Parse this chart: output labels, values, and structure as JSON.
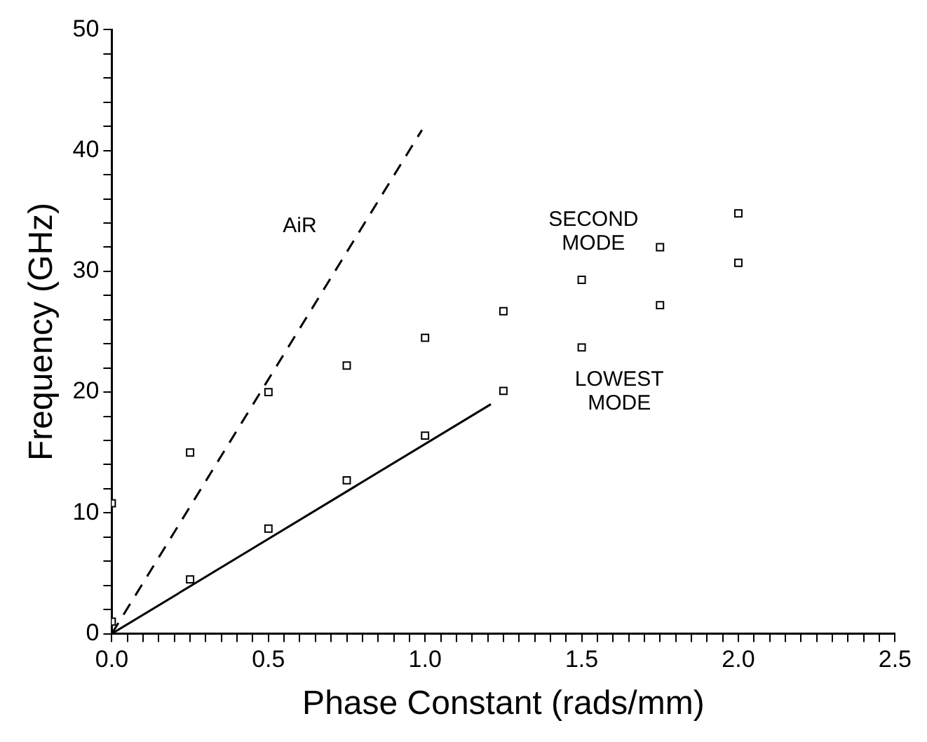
{
  "chart_data": {
    "type": "scatter",
    "xlabel": "Phase Constant (rads/mm)",
    "ylabel": "Frequency (GHz)",
    "xlim": [
      0,
      2.5
    ],
    "ylim": [
      0,
      50
    ],
    "xticks": [
      {
        "value": 0,
        "label": "0.0"
      },
      {
        "value": 0.05,
        "label": null
      },
      {
        "value": 0.1,
        "label": null
      },
      {
        "value": 0.15,
        "label": null
      },
      {
        "value": 0.2,
        "label": null
      },
      {
        "value": 0.25,
        "label": null
      },
      {
        "value": 0.3,
        "label": null
      },
      {
        "value": 0.35,
        "label": null
      },
      {
        "value": 0.4,
        "label": null
      },
      {
        "value": 0.45,
        "label": null
      },
      {
        "value": 0.5,
        "label": "0.5"
      },
      {
        "value": 0.55,
        "label": null
      },
      {
        "value": 0.6,
        "label": null
      },
      {
        "value": 0.65,
        "label": null
      },
      {
        "value": 0.7,
        "label": null
      },
      {
        "value": 0.75,
        "label": null
      },
      {
        "value": 0.8,
        "label": null
      },
      {
        "value": 0.85,
        "label": null
      },
      {
        "value": 0.9,
        "label": null
      },
      {
        "value": 0.95,
        "label": null
      },
      {
        "value": 1,
        "label": "1.0"
      },
      {
        "value": 1.05,
        "label": null
      },
      {
        "value": 1.1,
        "label": null
      },
      {
        "value": 1.15,
        "label": null
      },
      {
        "value": 1.2,
        "label": null
      },
      {
        "value": 1.25,
        "label": null
      },
      {
        "value": 1.3,
        "label": null
      },
      {
        "value": 1.35,
        "label": null
      },
      {
        "value": 1.4,
        "label": null
      },
      {
        "value": 1.45,
        "label": null
      },
      {
        "value": 1.5,
        "label": "1.5"
      },
      {
        "value": 1.55,
        "label": null
      },
      {
        "value": 1.6,
        "label": null
      },
      {
        "value": 1.65,
        "label": null
      },
      {
        "value": 1.7,
        "label": null
      },
      {
        "value": 1.75,
        "label": null
      },
      {
        "value": 1.8,
        "label": null
      },
      {
        "value": 1.85,
        "label": null
      },
      {
        "value": 1.9,
        "label": null
      },
      {
        "value": 1.95,
        "label": null
      },
      {
        "value": 2,
        "label": "2.0"
      },
      {
        "value": 2.05,
        "label": null
      },
      {
        "value": 2.1,
        "label": null
      },
      {
        "value": 2.15,
        "label": null
      },
      {
        "value": 2.2,
        "label": null
      },
      {
        "value": 2.25,
        "label": null
      },
      {
        "value": 2.3,
        "label": null
      },
      {
        "value": 2.35,
        "label": null
      },
      {
        "value": 2.4,
        "label": null
      },
      {
        "value": 2.45,
        "label": null
      },
      {
        "value": 2.5,
        "label": "2.5"
      }
    ],
    "yticks": [
      0,
      {
        "value": 2,
        "label": null
      },
      {
        "value": 4,
        "label": null
      },
      {
        "value": 6,
        "label": null
      },
      {
        "value": 8,
        "label": null
      },
      10,
      {
        "value": 12,
        "label": null
      },
      {
        "value": 14,
        "label": null
      },
      {
        "value": 16,
        "label": null
      },
      {
        "value": 18,
        "label": null
      },
      20,
      {
        "value": 22,
        "label": null
      },
      {
        "value": 24,
        "label": null
      },
      {
        "value": 26,
        "label": null
      },
      {
        "value": 28,
        "label": null
      },
      30,
      {
        "value": 32,
        "label": null
      },
      {
        "value": 34,
        "label": null
      },
      {
        "value": 36,
        "label": null
      },
      {
        "value": 38,
        "label": null
      },
      40,
      {
        "value": 42,
        "label": null
      },
      {
        "value": 44,
        "label": null
      },
      {
        "value": 46,
        "label": null
      },
      {
        "value": 48,
        "label": null
      },
      50
    ],
    "grid": false,
    "legend": false,
    "series": [
      {
        "type": "scatter",
        "marker": "square",
        "color": "#000000",
        "x": [
          0,
          0,
          0.25,
          0.25,
          0.5,
          0.5,
          0.75,
          0.75,
          1,
          1,
          1.25,
          1.25,
          1.5,
          1.5,
          1.75,
          1.75,
          2,
          2
        ],
        "values": [
          1.0,
          10.8,
          4.5,
          15.0,
          8.7,
          20.0,
          12.7,
          22.2,
          16.4,
          24.5,
          20.1,
          26.7,
          23.7,
          29.3,
          27.2,
          32.0,
          30.7,
          34.8
        ]
      },
      {
        "type": "line",
        "marker": "none",
        "line_style": "dashed",
        "color": "#000000",
        "x": [
          0,
          0.99
        ],
        "values": [
          0,
          41.7
        ]
      },
      {
        "type": "line",
        "marker": "none",
        "line_style": "solid",
        "color": "#000000",
        "x": [
          0,
          1.21
        ],
        "values": [
          0,
          19.0
        ]
      }
    ],
    "annotations": [
      "AiR",
      "SECOND MODE",
      "LOWEST MODE"
    ]
  }
}
